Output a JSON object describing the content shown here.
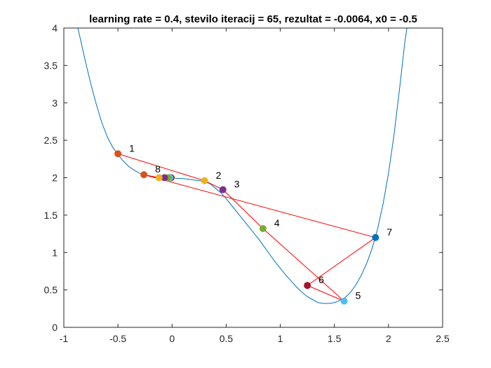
{
  "chart_data": {
    "type": "line",
    "title": "learning rate = 0.4, stevilo iteracij = 65, rezultat = -0.0064, x0 = -0.5",
    "xlabel": "",
    "ylabel": "",
    "xlim": [
      -1,
      2.5
    ],
    "ylim": [
      0,
      4
    ],
    "xticks": [
      -1,
      -0.5,
      0,
      0.5,
      1,
      1.5,
      2,
      2.5
    ],
    "xtick_labels": [
      "-1",
      "-0.5",
      "0",
      "0.5",
      "1",
      "1.5",
      "2",
      "2.5"
    ],
    "yticks": [
      0,
      0.5,
      1,
      1.5,
      2,
      2.5,
      3,
      3.5,
      4
    ],
    "ytick_labels": [
      "0",
      "0.5",
      "1",
      "1.5",
      "2",
      "2.5",
      "3",
      "3.5",
      "4"
    ],
    "grid": false,
    "curve": {
      "color": "#0072bd",
      "x": [
        -0.87,
        -0.8,
        -0.75,
        -0.7,
        -0.65,
        -0.6,
        -0.55,
        -0.5,
        -0.45,
        -0.4,
        -0.35,
        -0.3,
        -0.25,
        -0.2,
        -0.15,
        -0.1,
        -0.05,
        0,
        0.05,
        0.1,
        0.15,
        0.2,
        0.25,
        0.3,
        0.35,
        0.4,
        0.45,
        0.5,
        0.55,
        0.6,
        0.65,
        0.7,
        0.75,
        0.8,
        0.85,
        0.9,
        0.95,
        1.0,
        1.05,
        1.1,
        1.15,
        1.2,
        1.25,
        1.3,
        1.35,
        1.4,
        1.45,
        1.5,
        1.55,
        1.6,
        1.65,
        1.7,
        1.75,
        1.8,
        1.85,
        1.9,
        1.95,
        2.0,
        2.05,
        2.1,
        2.15,
        2.17
      ],
      "y": [
        4.0,
        3.55,
        3.25,
        2.98,
        2.74,
        2.55,
        2.41,
        2.31,
        2.22,
        2.15,
        2.1,
        2.06,
        2.035,
        2.015,
        2.005,
        2.0,
        2.0,
        2.0,
        1.99,
        1.99,
        1.98,
        1.97,
        1.96,
        1.95,
        1.92,
        1.86,
        1.8,
        1.72,
        1.63,
        1.54,
        1.45,
        1.36,
        1.27,
        1.18,
        1.08,
        0.98,
        0.88,
        0.79,
        0.7,
        0.62,
        0.54,
        0.47,
        0.41,
        0.37,
        0.33,
        0.32,
        0.32,
        0.33,
        0.36,
        0.4,
        0.47,
        0.57,
        0.7,
        0.86,
        1.06,
        1.32,
        1.65,
        2.06,
        2.56,
        3.16,
        3.8,
        4.0
      ]
    },
    "path": {
      "color": "#ff0000",
      "x": [
        -0.5,
        0.3,
        0.47,
        0.84,
        1.59,
        1.25,
        1.88,
        -0.26,
        -0.12,
        -0.07,
        -0.04,
        -0.02,
        -0.01,
        -0.0064
      ],
      "y": [
        2.32,
        1.96,
        1.84,
        1.32,
        0.35,
        0.56,
        1.2,
        2.04,
        2.0,
        2.0,
        2.0,
        2.0,
        2.0,
        2.0
      ]
    },
    "points": [
      {
        "x": -0.5,
        "y": 2.32,
        "color": "#d95319",
        "label": "1"
      },
      {
        "x": 0.3,
        "y": 1.96,
        "color": "#edb120",
        "label": "2"
      },
      {
        "x": 0.47,
        "y": 1.84,
        "color": "#7e2f8e",
        "label": "3"
      },
      {
        "x": 0.84,
        "y": 1.32,
        "color": "#77ac30",
        "label": "4"
      },
      {
        "x": 1.59,
        "y": 0.35,
        "color": "#4dbeee",
        "label": "5"
      },
      {
        "x": 1.25,
        "y": 0.56,
        "color": "#a2142f",
        "label": "6"
      },
      {
        "x": 1.88,
        "y": 1.2,
        "color": "#0072bd",
        "label": "7"
      },
      {
        "x": -0.26,
        "y": 2.04,
        "color": "#d95319",
        "label": "8"
      },
      {
        "x": -0.12,
        "y": 2.0,
        "color": "#edb120",
        "label": ""
      },
      {
        "x": -0.07,
        "y": 2.0,
        "color": "#7e2f8e",
        "label": ""
      },
      {
        "x": -0.04,
        "y": 2.0,
        "color": "#77ac30",
        "label": ""
      },
      {
        "x": -0.02,
        "y": 2.0,
        "color": "#4dbeee",
        "label": ""
      },
      {
        "x": -0.01,
        "y": 2.0,
        "color": "#a2142f",
        "label": ""
      },
      {
        "x": -0.0064,
        "y": 2.0,
        "color": "#edb120",
        "label": ""
      }
    ]
  }
}
